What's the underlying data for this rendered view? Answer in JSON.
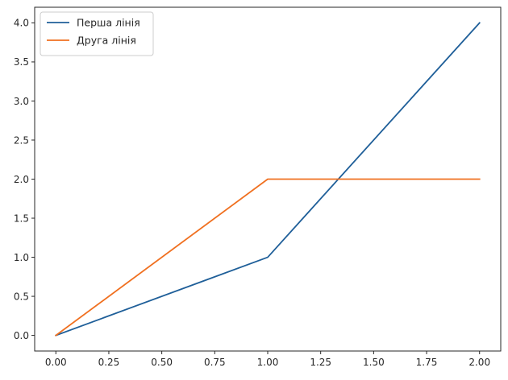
{
  "chart_data": {
    "type": "line",
    "title": "",
    "xlabel": "",
    "ylabel": "",
    "xlim": [
      -0.1,
      2.1
    ],
    "ylim": [
      -0.2,
      4.2
    ],
    "grid": false,
    "legend_position": "top-left",
    "x_ticks": [
      "0.00",
      "0.25",
      "0.50",
      "0.75",
      "1.00",
      "1.25",
      "1.50",
      "1.75",
      "2.00"
    ],
    "x_tick_values": [
      0,
      0.25,
      0.5,
      0.75,
      1.0,
      1.25,
      1.5,
      1.75,
      2.0
    ],
    "y_ticks": [
      "0.0",
      "0.5",
      "1.0",
      "1.5",
      "2.0",
      "2.5",
      "3.0",
      "3.5",
      "4.0"
    ],
    "y_tick_values": [
      0,
      0.5,
      1.0,
      1.5,
      2.0,
      2.5,
      3.0,
      3.5,
      4.0
    ],
    "series": [
      {
        "name": "Перша лінія",
        "color": "#1f5f99",
        "x": [
          0,
          1,
          2
        ],
        "y": [
          0,
          1,
          4
        ]
      },
      {
        "name": "Друга лінія",
        "color": "#f07020",
        "x": [
          0,
          1,
          2
        ],
        "y": [
          0,
          2,
          2
        ]
      }
    ]
  }
}
